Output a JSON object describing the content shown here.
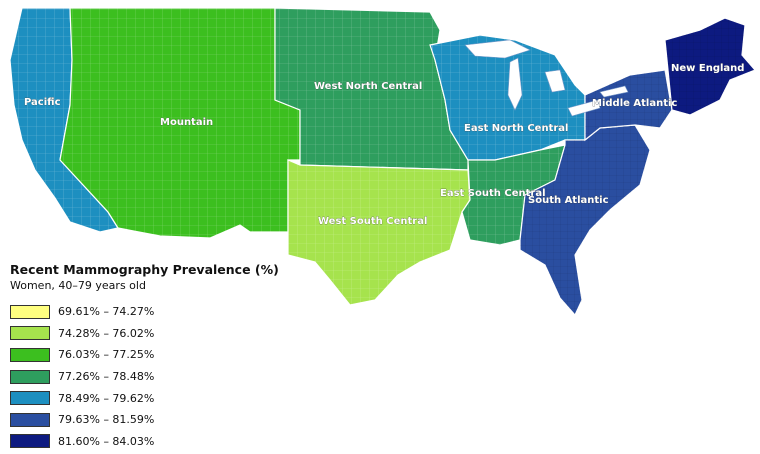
{
  "legend": {
    "title": "Recent Mammography Prevalence (%)",
    "subtitle": "Women, 40–79 years old",
    "items": [
      {
        "label": "69.61% – 74.27%",
        "color": "#ffff80"
      },
      {
        "label": "74.28% – 76.02%",
        "color": "#a6e34d"
      },
      {
        "label": "76.03% – 77.25%",
        "color": "#3cbf1f"
      },
      {
        "label": "77.26% – 78.48%",
        "color": "#2e9e5e"
      },
      {
        "label": "78.49% – 79.62%",
        "color": "#1d8fc0"
      },
      {
        "label": "79.63% – 81.59%",
        "color": "#2a4ea0"
      },
      {
        "label": "81.60% – 84.03%",
        "color": "#0d1a80"
      }
    ]
  },
  "regions": [
    {
      "id": "pacific",
      "name": "Pacific",
      "color": "#1d8fc0"
    },
    {
      "id": "mountain",
      "name": "Mountain",
      "color": "#3cbf1f"
    },
    {
      "id": "west-north-central",
      "name": "West North Central",
      "color": "#2e9e5e"
    },
    {
      "id": "west-south-central",
      "name": "West South Central",
      "color": "#a6e34d"
    },
    {
      "id": "east-north-central",
      "name": "East North Central",
      "color": "#1d8fc0"
    },
    {
      "id": "east-south-central",
      "name": "East South Central",
      "color": "#2e9e5e"
    },
    {
      "id": "south-atlantic",
      "name": "South Atlantic",
      "color": "#2a4ea0"
    },
    {
      "id": "middle-atlantic",
      "name": "Middle Atlantic",
      "color": "#2a4ea0"
    },
    {
      "id": "new-england",
      "name": "New England",
      "color": "#0d1a80"
    }
  ]
}
